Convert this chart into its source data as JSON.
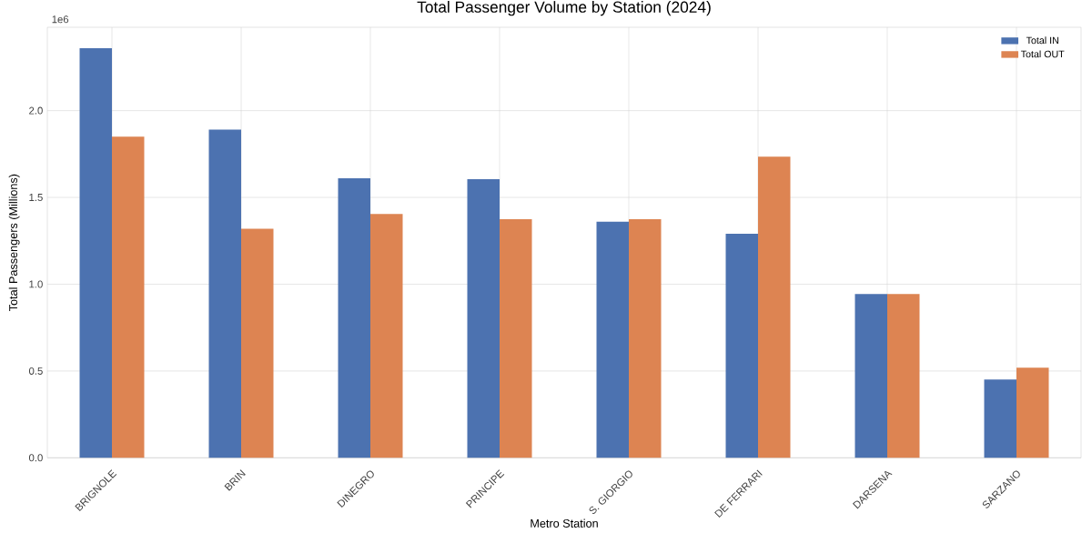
{
  "chart_data": {
    "type": "bar",
    "title": "Total Passenger Volume by Station (2024)",
    "xlabel": "Metro Station",
    "ylabel": "Total Passengers (Millions)",
    "categories": [
      "BRIGNOLE",
      "BRIN",
      "DINEGRO",
      "PRINCIPE",
      "S. GIORGIO",
      "DE FERRARI",
      "DARSENA",
      "SARZANO"
    ],
    "series": [
      {
        "name": "Total IN",
        "color": "#4c72b0",
        "values": [
          2.36,
          1.89,
          1.61,
          1.605,
          1.36,
          1.29,
          0.944,
          0.451
        ]
      },
      {
        "name": "Total OUT",
        "color": "#dd8452",
        "values": [
          1.85,
          1.32,
          1.405,
          1.375,
          1.375,
          1.735,
          0.944,
          0.519
        ]
      }
    ],
    "ylim": [
      0,
      2.48
    ],
    "yticks": [
      {
        "value": 0,
        "label": "0.0"
      },
      {
        "value": 0.5,
        "label": "0.5"
      },
      {
        "value": 1,
        "label": "1.0"
      },
      {
        "value": 1.5,
        "label": "1.5"
      },
      {
        "value": 2,
        "label": "2.0"
      }
    ],
    "annotations": [
      "1e6"
    ],
    "grid": true,
    "legend": "top right"
  }
}
